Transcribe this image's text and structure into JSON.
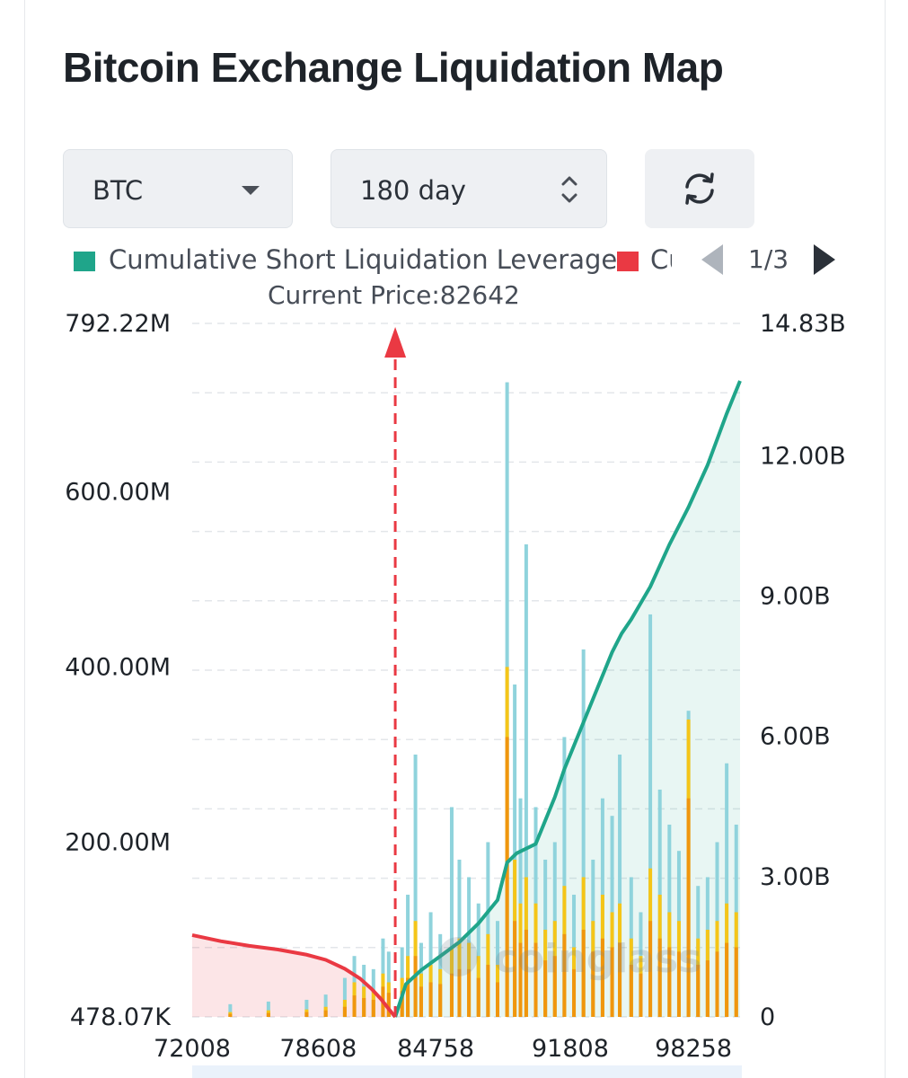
{
  "title": "Bitcoin Exchange Liquidation Map",
  "controls": {
    "coin": "BTC",
    "period": "180 day",
    "icons": {
      "coin_caret": "chevron-down-icon",
      "period_spinner": "up-down-spinner-icon",
      "refresh": "refresh-icon"
    }
  },
  "legend": {
    "items": [
      {
        "label": "Cumulative Short Liquidation Leverage",
        "color": "#1fa58a"
      },
      {
        "label": "Cumulative Long Liquidation Leverage",
        "visible_text": "Cu",
        "color": "#ea3943"
      }
    ],
    "pager": "1/3"
  },
  "current_price_label": "Current Price:82642",
  "watermark": "coinglass",
  "chart_data": {
    "type": "bar",
    "current_price": 82642,
    "x_ticks": [
      "72008",
      "78608",
      "84758",
      "91808",
      "98258"
    ],
    "x_range": [
      72008,
      100700
    ],
    "y_left_ticks": [
      "792.22M",
      "600.00M",
      "400.00M",
      "200.00M",
      "478.07K"
    ],
    "y_left_range": [
      478070,
      792220000
    ],
    "y_right_ticks": [
      "14.83B",
      "12.00B",
      "9.00B",
      "6.00B",
      "3.00B",
      "0"
    ],
    "y_right_range": [
      0,
      14830000000
    ],
    "grid": "horizontal dashed",
    "colors": {
      "short": "#1fa58a",
      "long": "#ea3943",
      "bar_cyan": "#8fd3dc",
      "bar_yellow": "#f5c518",
      "bar_orange": "#f0960e"
    },
    "cumulative_long": {
      "x": [
        72008,
        73500,
        75000,
        76500,
        78000,
        79000,
        80000,
        80800,
        81400,
        81900,
        82300,
        82642
      ],
      "y": [
        1750000000.0,
        1620000000.0,
        1520000000.0,
        1440000000.0,
        1330000000.0,
        1220000000.0,
        1030000000.0,
        820000000.0,
        600000000.0,
        380000000.0,
        170000000.0,
        0
      ]
    },
    "cumulative_short": {
      "x": [
        82642,
        83200,
        84000,
        85000,
        86000,
        87000,
        88000,
        88500,
        89000,
        90000,
        91000,
        91500,
        92000,
        93000,
        94000,
        94500,
        95000,
        96000,
        97000,
        98000,
        99000,
        100000,
        100700
      ],
      "y": [
        0,
        700000000.0,
        1000000000.0,
        1300000000.0,
        1600000000.0,
        2000000000.0,
        2500000000.0,
        3300000000.0,
        3500000000.0,
        3700000000.0,
        4700000000.0,
        5300000000.0,
        5800000000.0,
        6800000000.0,
        7800000000.0,
        8200000000.0,
        8500000000.0,
        9200000000.0,
        10100000000.0,
        10900000000.0,
        11800000000.0,
        12900000000.0,
        13600000000.0
      ]
    },
    "bars": {
      "x": [
        74000,
        76000,
        78000,
        79000,
        80000,
        80500,
        81000,
        81500,
        82000,
        82300,
        83000,
        83300,
        83700,
        84000,
        84500,
        85000,
        85600,
        86000,
        86500,
        87000,
        87500,
        88000,
        88500,
        88900,
        89200,
        89500,
        90000,
        90500,
        91000,
        91500,
        92000,
        92500,
        93000,
        93500,
        94000,
        94400,
        95000,
        95500,
        96000,
        96500,
        97000,
        97500,
        98000,
        98500,
        99000,
        99500,
        100000,
        100500
      ],
      "total": [
        15000000.0,
        18000000.0,
        20000000.0,
        26000000.0,
        45000000.0,
        70000000.0,
        60000000.0,
        55000000.0,
        90000000.0,
        75000000.0,
        80000000.0,
        140000000.0,
        300000000.0,
        85000000.0,
        120000000.0,
        95000000.0,
        240000000.0,
        180000000.0,
        160000000.0,
        130000000.0,
        200000000.0,
        110000000.0,
        725000000.0,
        380000000.0,
        250000000.0,
        540000000.0,
        240000000.0,
        180000000.0,
        200000000.0,
        320000000.0,
        140000000.0,
        420000000.0,
        180000000.0,
        250000000.0,
        230000000.0,
        300000000.0,
        160000000.0,
        120000000.0,
        460000000.0,
        260000000.0,
        220000000.0,
        190000000.0,
        350000000.0,
        150000000.0,
        160000000.0,
        200000000.0,
        290000000.0,
        220000000.0
      ],
      "yellow": [
        6000000.0,
        8000000.0,
        9000000.0,
        12000000.0,
        20000000.0,
        40000000.0,
        35000000.0,
        30000000.0,
        50000000.0,
        40000000.0,
        45000000.0,
        70000000.0,
        110000000.0,
        50000000.0,
        60000000.0,
        55000000.0,
        80000000.0,
        90000000.0,
        85000000.0,
        70000000.0,
        95000000.0,
        60000000.0,
        400000000.0,
        180000000.0,
        130000000.0,
        160000000.0,
        130000000.0,
        100000000.0,
        110000000.0,
        150000000.0,
        80000000.0,
        160000000.0,
        110000000.0,
        140000000.0,
        120000000.0,
        130000000.0,
        90000000.0,
        70000000.0,
        170000000.0,
        140000000.0,
        120000000.0,
        110000000.0,
        340000000.0,
        90000000.0,
        100000000.0,
        110000000.0,
        130000000.0,
        120000000.0
      ],
      "orange": [
        4000000.0,
        5000000.0,
        6000000.0,
        8000000.0,
        12000000.0,
        25000000.0,
        22000000.0,
        20000000.0,
        35000000.0,
        28000000.0,
        30000000.0,
        45000000.0,
        70000000.0,
        35000000.0,
        40000000.0,
        38000000.0,
        50000000.0,
        55000000.0,
        55000000.0,
        45000000.0,
        60000000.0,
        40000000.0,
        320000000.0,
        110000000.0,
        85000000.0,
        100000000.0,
        85000000.0,
        65000000.0,
        70000000.0,
        95000000.0,
        55000000.0,
        100000000.0,
        75000000.0,
        90000000.0,
        80000000.0,
        85000000.0,
        60000000.0,
        50000000.0,
        110000000.0,
        90000000.0,
        80000000.0,
        75000000.0,
        250000000.0,
        60000000.0,
        65000000.0,
        75000000.0,
        85000000.0,
        80000000.0
      ]
    }
  }
}
